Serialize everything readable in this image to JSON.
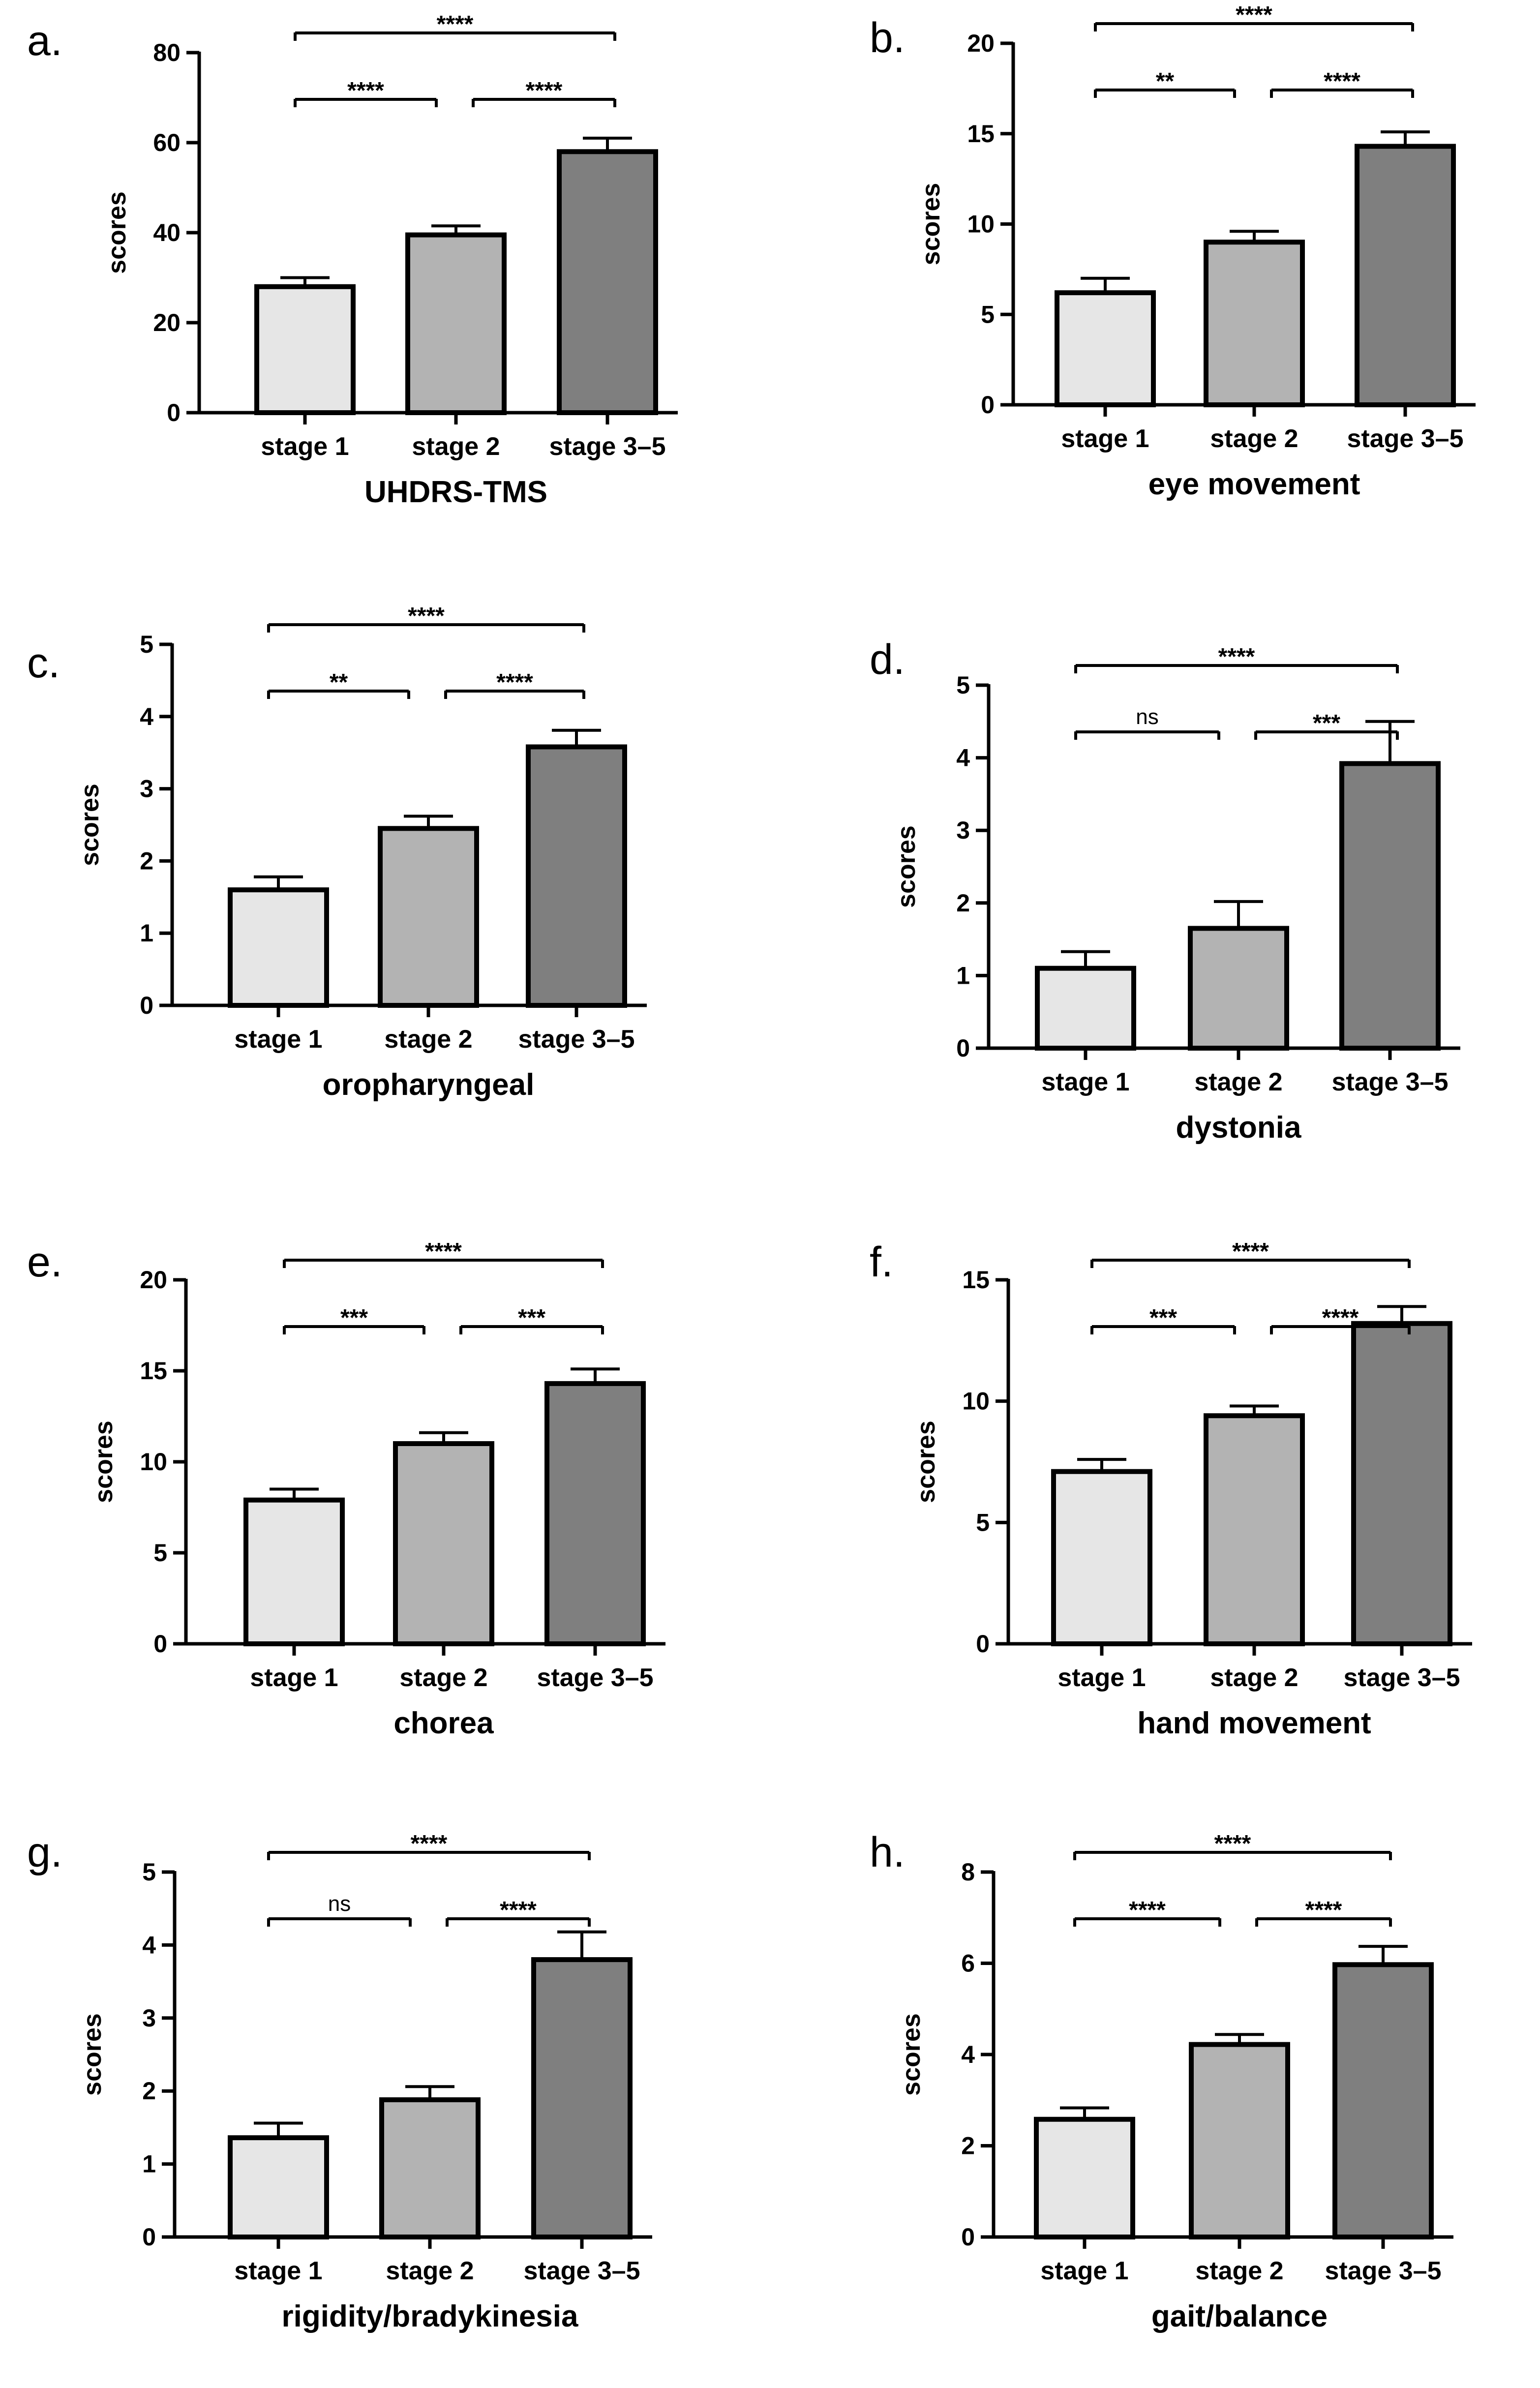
{
  "colors": {
    "stage1": "#e6e6e6",
    "stage2": "#b3b3b3",
    "stage3": "#7f7f7f",
    "axis": "#000000"
  },
  "chart_data": [
    {
      "type": "bar",
      "panel": "a.",
      "title": "",
      "xlabel": "UHDRS-TMS",
      "ylabel": "scores",
      "categories": [
        "stage 1",
        "stage 2",
        "stage 3–5"
      ],
      "values": [
        28,
        39.5,
        58
      ],
      "errors": [
        2,
        2,
        3
      ],
      "ylim": [
        0,
        80
      ],
      "yticks": [
        0,
        20,
        40,
        60,
        80
      ],
      "significance": [
        {
          "from": 0,
          "to": 1,
          "label": "****",
          "level": 1
        },
        {
          "from": 1,
          "to": 2,
          "label": "****",
          "level": 1
        },
        {
          "from": 0,
          "to": 2,
          "label": "****",
          "level": 2
        }
      ]
    },
    {
      "type": "bar",
      "panel": "b.",
      "title": "",
      "xlabel": "eye movement",
      "ylabel": "scores",
      "categories": [
        "stage 1",
        "stage 2",
        "stage 3–5"
      ],
      "values": [
        6.2,
        9,
        14.3
      ],
      "errors": [
        0.8,
        0.6,
        0.8
      ],
      "ylim": [
        0,
        20
      ],
      "yticks": [
        0,
        5,
        10,
        15,
        20
      ],
      "significance": [
        {
          "from": 0,
          "to": 1,
          "label": "**",
          "level": 1
        },
        {
          "from": 1,
          "to": 2,
          "label": "****",
          "level": 1
        },
        {
          "from": 0,
          "to": 2,
          "label": "****",
          "level": 2
        }
      ]
    },
    {
      "type": "bar",
      "panel": "c.",
      "title": "",
      "xlabel": "oropharyngeal",
      "ylabel": "scores",
      "categories": [
        "stage 1",
        "stage 2",
        "stage 3–5"
      ],
      "values": [
        1.6,
        2.45,
        3.58
      ],
      "errors": [
        0.18,
        0.17,
        0.23
      ],
      "ylim": [
        0,
        5
      ],
      "yticks": [
        0,
        1,
        2,
        3,
        4,
        5
      ],
      "significance": [
        {
          "from": 0,
          "to": 1,
          "label": "**",
          "level": 1
        },
        {
          "from": 1,
          "to": 2,
          "label": "****",
          "level": 1
        },
        {
          "from": 0,
          "to": 2,
          "label": "****",
          "level": 2
        }
      ]
    },
    {
      "type": "bar",
      "panel": "d.",
      "title": "",
      "xlabel": "dystonia",
      "ylabel": "scores",
      "categories": [
        "stage 1",
        "stage 2",
        "stage 3–5"
      ],
      "values": [
        1.1,
        1.65,
        3.92
      ],
      "errors": [
        0.23,
        0.37,
        0.58
      ],
      "ylim": [
        0,
        5
      ],
      "yticks": [
        0,
        1,
        2,
        3,
        4,
        5
      ],
      "significance": [
        {
          "from": 0,
          "to": 1,
          "label": "ns",
          "level": 1
        },
        {
          "from": 1,
          "to": 2,
          "label": "***",
          "level": 1
        },
        {
          "from": 0,
          "to": 2,
          "label": "****",
          "level": 2
        }
      ]
    },
    {
      "type": "bar",
      "panel": "e.",
      "title": "",
      "xlabel": "chorea",
      "ylabel": "scores",
      "categories": [
        "stage 1",
        "stage 2",
        "stage 3–5"
      ],
      "values": [
        7.9,
        11,
        14.3
      ],
      "errors": [
        0.6,
        0.6,
        0.8
      ],
      "ylim": [
        0,
        20
      ],
      "yticks": [
        0,
        5,
        10,
        15,
        20
      ],
      "significance": [
        {
          "from": 0,
          "to": 1,
          "label": "***",
          "level": 1
        },
        {
          "from": 1,
          "to": 2,
          "label": "***",
          "level": 1
        },
        {
          "from": 0,
          "to": 2,
          "label": "****",
          "level": 2
        }
      ]
    },
    {
      "type": "bar",
      "panel": "f.",
      "title": "",
      "xlabel": "hand movement",
      "ylabel": "scores",
      "categories": [
        "stage 1",
        "stage 2",
        "stage 3–5"
      ],
      "values": [
        7.1,
        9.4,
        13.2
      ],
      "errors": [
        0.5,
        0.4,
        0.7
      ],
      "ylim": [
        0,
        15
      ],
      "yticks": [
        0,
        5,
        10,
        15
      ],
      "significance": [
        {
          "from": 0,
          "to": 1,
          "label": "***",
          "level": 1
        },
        {
          "from": 1,
          "to": 2,
          "label": "****",
          "level": 1
        },
        {
          "from": 0,
          "to": 2,
          "label": "****",
          "level": 2
        }
      ]
    },
    {
      "type": "bar",
      "panel": "g.",
      "title": "",
      "xlabel": "rigidity/bradykinesia",
      "ylabel": "scores",
      "categories": [
        "stage 1",
        "stage 2",
        "stage 3–5"
      ],
      "values": [
        1.36,
        1.88,
        3.8
      ],
      "errors": [
        0.2,
        0.18,
        0.38
      ],
      "ylim": [
        0,
        5
      ],
      "yticks": [
        0,
        1,
        2,
        3,
        4,
        5
      ],
      "significance": [
        {
          "from": 0,
          "to": 1,
          "label": "ns",
          "level": 1
        },
        {
          "from": 1,
          "to": 2,
          "label": "****",
          "level": 1
        },
        {
          "from": 0,
          "to": 2,
          "label": "****",
          "level": 2
        }
      ]
    },
    {
      "type": "bar",
      "panel": "h.",
      "title": "",
      "xlabel": "gait/balance",
      "ylabel": "scores",
      "categories": [
        "stage 1",
        "stage 2",
        "stage 3–5"
      ],
      "values": [
        2.58,
        4.22,
        5.97
      ],
      "errors": [
        0.25,
        0.22,
        0.4
      ],
      "ylim": [
        0,
        8
      ],
      "yticks": [
        0,
        2,
        4,
        6,
        8
      ],
      "significance": [
        {
          "from": 0,
          "to": 1,
          "label": "****",
          "level": 1
        },
        {
          "from": 1,
          "to": 2,
          "label": "****",
          "level": 1
        },
        {
          "from": 0,
          "to": 2,
          "label": "****",
          "level": 2
        }
      ]
    }
  ]
}
